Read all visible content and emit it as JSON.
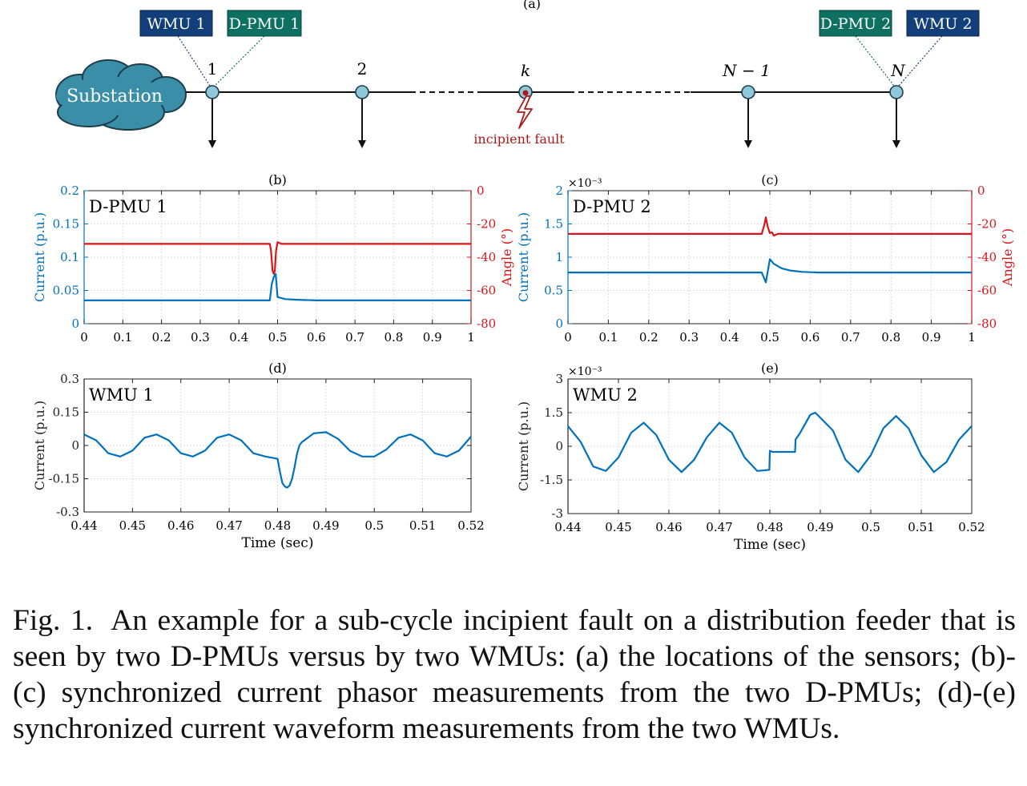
{
  "diagram": {
    "panel_label": "(a)",
    "substation_label": "Substation",
    "sensor_labels": {
      "wmu1": "WMU 1",
      "dpmu1": "D-PMU 1",
      "dpmu2": "D-PMU 2",
      "wmu2": "WMU 2"
    },
    "node_labels": [
      "1",
      "2",
      "k",
      "N − 1",
      "N"
    ],
    "fault_label": "incipient fault",
    "colors": {
      "wmu_box": "#123f7a",
      "dpmu_box": "#0e7062",
      "cloud": "#3a8ea8",
      "node": "#8fc8d8",
      "fault": "#b01818"
    }
  },
  "caption": {
    "label": "Fig. 1.",
    "text": "An example for a sub-cycle incipient fault on a distribution feeder that is seen by two D-PMUs versus by two WMUs: (a) the locations of the sensors; (b)-(c) synchronized current phasor measurements from the two D-PMUs; (d)-(e) synchronized current waveform measurements from the two WMUs."
  },
  "chart_data": [
    {
      "id": "b",
      "panel_label": "(b)",
      "type": "line",
      "annotation": "D-PMU 1",
      "xlim": [
        0,
        1
      ],
      "xticks": [
        "0",
        "0.1",
        "0.2",
        "0.3",
        "0.4",
        "0.5",
        "0.6",
        "0.7",
        "0.8",
        "0.9",
        "1"
      ],
      "ylabel": "Current (p.u.)",
      "ylim": [
        0,
        0.2
      ],
      "yticks": [
        "0",
        "0.05",
        "0.1",
        "0.15",
        "0.2"
      ],
      "y2label": "Angle (°)",
      "y2lim": [
        -80,
        0
      ],
      "y2ticks": [
        "-80",
        "-60",
        "-40",
        "-20",
        "0"
      ],
      "grid": true,
      "series": [
        {
          "axis": "left",
          "color": "#0072bd",
          "x": [
            0,
            0.48,
            0.485,
            0.49,
            0.495,
            0.5,
            0.52,
            0.55,
            0.6,
            0.7,
            1
          ],
          "y": [
            0.035,
            0.035,
            0.06,
            0.07,
            0.075,
            0.04,
            0.037,
            0.036,
            0.035,
            0.035,
            0.035
          ]
        },
        {
          "axis": "right",
          "color": "#d9151a",
          "x": [
            0,
            0.48,
            0.483,
            0.487,
            0.49,
            0.493,
            0.496,
            0.5,
            0.51,
            0.52,
            1
          ],
          "y": [
            -32,
            -32,
            -36,
            -48,
            -50,
            -48,
            -36,
            -31,
            -32,
            -32,
            -32
          ]
        }
      ]
    },
    {
      "id": "c",
      "panel_label": "(c)",
      "type": "line",
      "annotation": "D-PMU 2",
      "xlim": [
        0,
        1
      ],
      "xticks": [
        "0",
        "0.1",
        "0.2",
        "0.3",
        "0.4",
        "0.5",
        "0.6",
        "0.7",
        "0.8",
        "0.9",
        "1"
      ],
      "ylabel": "Current (p.u.)",
      "ylim": [
        0,
        2
      ],
      "yticks": [
        "0",
        "0.5",
        "1",
        "1.5",
        "2"
      ],
      "yexponent": "×10⁻³",
      "y2label": "Angle (°)",
      "y2lim": [
        -80,
        0
      ],
      "y2ticks": [
        "-80",
        "-60",
        "-40",
        "-20",
        "0"
      ],
      "grid": true,
      "series": [
        {
          "axis": "left",
          "color": "#0072bd",
          "x": [
            0,
            0.48,
            0.49,
            0.5,
            0.51,
            0.53,
            0.55,
            0.58,
            0.62,
            0.7,
            1
          ],
          "y": [
            0.77,
            0.77,
            0.62,
            0.97,
            0.9,
            0.83,
            0.8,
            0.78,
            0.77,
            0.77,
            0.77
          ]
        },
        {
          "axis": "right",
          "color": "#d9151a",
          "x": [
            0,
            0.48,
            0.487,
            0.49,
            0.495,
            0.5,
            0.505,
            0.51,
            0.52,
            0.54,
            1
          ],
          "y": [
            -26,
            -26,
            -20,
            -16,
            -22,
            -25.5,
            -25,
            -27,
            -26,
            -26,
            -26
          ]
        }
      ]
    },
    {
      "id": "d",
      "panel_label": "(d)",
      "type": "line",
      "annotation": "WMU 1",
      "xlim": [
        0.44,
        0.52
      ],
      "xticks": [
        "0.44",
        "0.45",
        "0.46",
        "0.47",
        "0.48",
        "0.49",
        "0.5",
        "0.51",
        "0.52"
      ],
      "xlabel": "Time (sec)",
      "ylabel": "Current (p.u.)",
      "ylim": [
        -0.3,
        0.3
      ],
      "yticks": [
        "-0.3",
        "-0.15",
        "0",
        "0.15",
        "0.3"
      ],
      "grid": true,
      "series": [
        {
          "color": "#0072bd",
          "x": [
            0.44,
            0.4425,
            0.445,
            0.4475,
            0.45,
            0.4525,
            0.455,
            0.4575,
            0.46,
            0.4625,
            0.465,
            0.4675,
            0.47,
            0.4725,
            0.475,
            0.4775,
            0.48,
            0.4805,
            0.481,
            0.4815,
            0.482,
            0.4825,
            0.483,
            0.4835,
            0.484,
            0.4845,
            0.485,
            0.4875,
            0.49,
            0.4925,
            0.495,
            0.4975,
            0.5,
            0.5025,
            0.505,
            0.5075,
            0.51,
            0.5125,
            0.515,
            0.5175,
            0.52
          ],
          "y": [
            0.05,
            0.023,
            -0.035,
            -0.05,
            -0.023,
            0.035,
            0.05,
            0.023,
            -0.035,
            -0.05,
            -0.023,
            0.035,
            0.05,
            0.023,
            -0.035,
            -0.05,
            -0.06,
            -0.12,
            -0.17,
            -0.185,
            -0.19,
            -0.18,
            -0.15,
            -0.1,
            -0.04,
            0.0,
            0.015,
            0.055,
            0.06,
            0.03,
            -0.025,
            -0.05,
            -0.05,
            -0.018,
            0.035,
            0.05,
            0.023,
            -0.035,
            -0.05,
            -0.023,
            0.04
          ]
        }
      ]
    },
    {
      "id": "e",
      "panel_label": "(e)",
      "type": "line",
      "annotation": "WMU 2",
      "xlim": [
        0.44,
        0.52
      ],
      "xticks": [
        "0.44",
        "0.45",
        "0.46",
        "0.47",
        "0.48",
        "0.49",
        "0.5",
        "0.51",
        "0.52"
      ],
      "xlabel": "Time (sec)",
      "ylabel": "Current (p.u.)",
      "ylim": [
        -3,
        3
      ],
      "yticks": [
        "-3",
        "-1.5",
        "0",
        "1.5",
        "3"
      ],
      "yexponent": "×10⁻³",
      "grid": true,
      "series": [
        {
          "color": "#0072bd",
          "x": [
            0.44,
            0.4425,
            0.445,
            0.4475,
            0.45,
            0.4525,
            0.455,
            0.4575,
            0.46,
            0.4625,
            0.465,
            0.4675,
            0.47,
            0.4725,
            0.475,
            0.4775,
            0.4799,
            0.48,
            0.4805,
            0.485,
            0.4851,
            0.486,
            0.488,
            0.489,
            0.4925,
            0.495,
            0.4975,
            0.5,
            0.5025,
            0.505,
            0.5075,
            0.51,
            0.5125,
            0.515,
            0.5175,
            0.52
          ],
          "y": [
            0.9,
            0.2,
            -0.9,
            -1.1,
            -0.5,
            0.6,
            1.05,
            0.5,
            -0.6,
            -1.15,
            -0.6,
            0.4,
            1.05,
            0.6,
            -0.5,
            -1.1,
            -1.05,
            -0.2,
            -0.25,
            -0.25,
            0.3,
            0.6,
            1.4,
            1.5,
            0.7,
            -0.6,
            -1.15,
            -0.4,
            0.8,
            1.35,
            0.8,
            -0.4,
            -1.15,
            -0.7,
            0.3,
            0.9
          ]
        }
      ]
    }
  ]
}
